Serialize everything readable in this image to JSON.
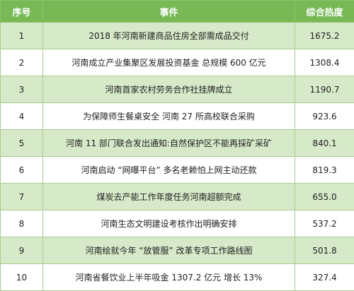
{
  "header": {
    "index": "序号",
    "event": "事件",
    "heat": "综合热度"
  },
  "rows": [
    {
      "index": "1",
      "event": "2018 年河南新建商品住房全部需成品交付",
      "heat": "1675.2"
    },
    {
      "index": "2",
      "event": "河南成立产业集聚区发展投资基金  总规模 600 亿元",
      "heat": "1308.4"
    },
    {
      "index": "3",
      "event": "河南首家农村劳务合作社挂牌成立",
      "heat": "1190.7"
    },
    {
      "index": "4",
      "event": "为保障师生餐桌安全  河南 27 所高校联合采购",
      "heat": "923.6"
    },
    {
      "index": "5",
      "event": "河南 11 部门联合发出通知:自然保护区不能再採矿采矿",
      "heat": "840.1"
    },
    {
      "index": "6",
      "event": "河南启动 “网曝平台”   多名老赖怕上网主动还款",
      "heat": "819.3"
    },
    {
      "index": "7",
      "event": "煤炭去产能工作年度任务河南超额完成",
      "heat": "655.0"
    },
    {
      "index": "8",
      "event": "河南生态文明建设考核作出明确安排",
      "heat": "537.2"
    },
    {
      "index": "9",
      "event": "河南绘就今年 “放管服” 改革专项工作路线图",
      "heat": "501.8"
    },
    {
      "index": "10",
      "event": "河南省餐饮业上半年吸金 1307.2 亿元  增长 13%",
      "heat": "327.4"
    }
  ]
}
